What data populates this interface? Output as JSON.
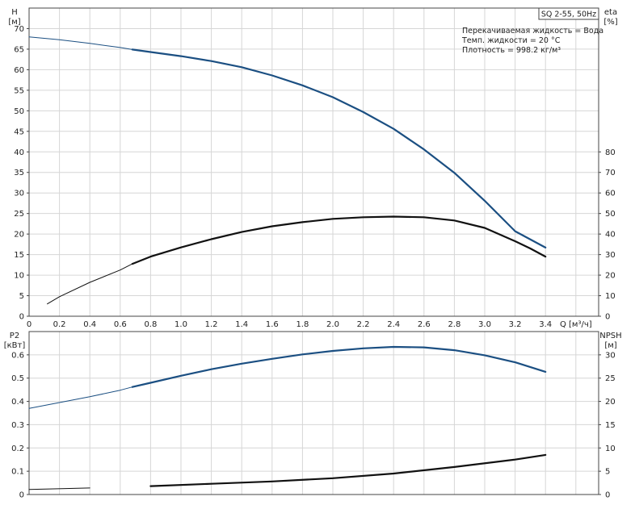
{
  "chart_data": [
    {
      "type": "line",
      "panel": "upper",
      "legend_box": "SQ 2-55, 50Hz",
      "annotations": [
        "Перекачиваемая жидкость = Вода",
        "Темп. жидкости = 20 °C",
        "Плотность = 998.2 кг/м³"
      ],
      "xlabel": "Q [м³/ч]",
      "x_ticks": [
        "0",
        "0.2",
        "0.4",
        "0.6",
        "0.8",
        "1.0",
        "1.2",
        "1.4",
        "1.6",
        "1.8",
        "2.0",
        "2.2",
        "2.4",
        "2.6",
        "2.8",
        "3.0",
        "3.2",
        "3.4"
      ],
      "xlim": [
        0,
        3.75
      ],
      "y_left_label_top": "H",
      "y_left_label_unit": "[м]",
      "y_left_ticks": [
        "0",
        "5",
        "10",
        "15",
        "20",
        "25",
        "30",
        "35",
        "40",
        "45",
        "50",
        "55",
        "60",
        "65",
        "70"
      ],
      "y_left_lim": [
        0,
        75
      ],
      "y_right_label_top": "eta",
      "y_right_label_unit": "[%]",
      "y_right_ticks": [
        "0",
        "10",
        "20",
        "30",
        "40",
        "50",
        "60",
        "70",
        "80"
      ],
      "y_right_lim": [
        0,
        150
      ],
      "grid": true,
      "series": [
        {
          "axis": "left",
          "color": "#1b4f82",
          "x": [
            0.0,
            0.2,
            0.4,
            0.6,
            0.68,
            0.8,
            1.0,
            1.2,
            1.4,
            1.6,
            1.8,
            2.0,
            2.2,
            2.4,
            2.6,
            2.8,
            3.0,
            3.2,
            3.4
          ],
          "y": [
            68,
            67.3,
            66.4,
            65.4,
            64.9,
            64.3,
            63.3,
            62.1,
            60.6,
            58.6,
            56.2,
            53.3,
            49.7,
            45.6,
            40.6,
            34.9,
            28.1,
            20.7,
            16.7
          ]
        },
        {
          "axis": "right",
          "color": "#111111",
          "x": [
            0.12,
            0.2,
            0.4,
            0.6,
            0.68,
            0.8,
            1.0,
            1.2,
            1.4,
            1.6,
            1.8,
            2.0,
            2.2,
            2.4,
            2.6,
            2.8,
            3.0,
            3.2,
            3.3,
            3.4
          ],
          "y": [
            6,
            9.5,
            16.5,
            22.5,
            25.5,
            29,
            33.5,
            37.5,
            41,
            43.8,
            45.8,
            47.4,
            48.2,
            48.5,
            48.2,
            46.6,
            43,
            36.5,
            33,
            29
          ]
        }
      ]
    },
    {
      "type": "line",
      "panel": "lower",
      "xlim": [
        0,
        3.75
      ],
      "y_left_label_top": "P2",
      "y_left_label_unit": "[кВт]",
      "y_left_ticks": [
        "0",
        "0.1",
        "0.2",
        "0.3",
        "0.4",
        "0.5",
        "0.6"
      ],
      "y_left_lim": [
        0,
        0.7
      ],
      "y_right_label_top": "NPSH",
      "y_right_label_unit": "[м]",
      "y_right_ticks": [
        "0",
        "5",
        "10",
        "15",
        "20",
        "25",
        "30"
      ],
      "y_right_lim": [
        0,
        35
      ],
      "grid": true,
      "series": [
        {
          "axis": "left",
          "color": "#1b4f82",
          "x": [
            0.0,
            0.2,
            0.4,
            0.6,
            0.68,
            0.8,
            1.0,
            1.2,
            1.4,
            1.6,
            1.8,
            2.0,
            2.2,
            2.4,
            2.6,
            2.8,
            3.0,
            3.2,
            3.4
          ],
          "y": [
            0.37,
            0.395,
            0.42,
            0.448,
            0.462,
            0.48,
            0.51,
            0.538,
            0.562,
            0.583,
            0.602,
            0.617,
            0.628,
            0.634,
            0.632,
            0.62,
            0.598,
            0.568,
            0.527
          ]
        },
        {
          "axis": "right",
          "color": "#111111",
          "x": [
            0.0,
            0.4,
            0.8,
            1.2,
            1.6,
            2.0,
            2.4,
            2.8,
            3.2,
            3.4
          ],
          "y": [
            1.1,
            1.4,
            1.8,
            2.3,
            2.8,
            3.5,
            4.5,
            5.9,
            7.5,
            8.5
          ]
        }
      ]
    }
  ]
}
